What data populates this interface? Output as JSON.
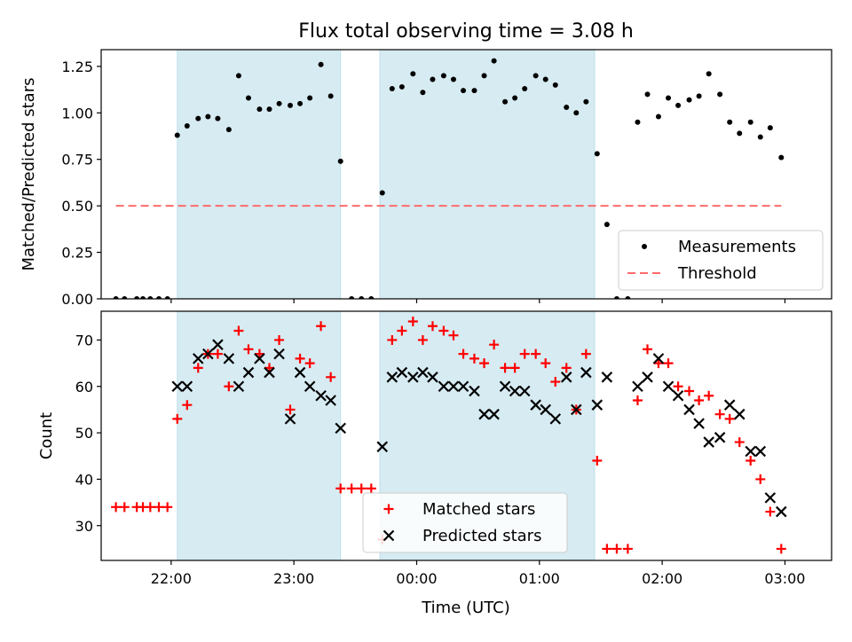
{
  "chart_data": {
    "type": "scatter",
    "title": "Flux total observing time = 3.08 h",
    "xlabel": "Time (UTC)",
    "x_unit": "hour (UTC), values after 24 are the next day",
    "xlim": [
      21.43,
      27.38
    ],
    "x_ticks": [
      22,
      23,
      24,
      25,
      26,
      27
    ],
    "x_tick_labels": [
      "22:00",
      "23:00",
      "00:00",
      "01:00",
      "02:00",
      "03:00"
    ],
    "shaded_intervals": [
      [
        22.05,
        23.38
      ],
      [
        23.7,
        25.45
      ]
    ],
    "shade_color": "#add8e6",
    "panels": [
      {
        "ylabel": "Matched/Predicted stars",
        "ylim": [
          0,
          1.34
        ],
        "y_ticks": [
          0,
          0.25,
          0.5,
          0.75,
          1.0,
          1.25
        ],
        "y_tick_labels": [
          "0.00",
          "0.25",
          "0.50",
          "0.75",
          "1.00",
          "1.25"
        ],
        "legend": {
          "position": "lower right",
          "entries": [
            "Measurements",
            "Threshold"
          ]
        },
        "series": [
          {
            "name": "Measurements",
            "style": "dot",
            "color": "#000000",
            "points": [
              [
                21.55,
                0
              ],
              [
                21.62,
                0
              ],
              [
                21.72,
                0
              ],
              [
                21.77,
                0
              ],
              [
                21.83,
                0
              ],
              [
                21.9,
                0
              ],
              [
                21.97,
                0
              ],
              [
                22.05,
                0.88
              ],
              [
                22.13,
                0.93
              ],
              [
                22.22,
                0.97
              ],
              [
                22.3,
                0.98
              ],
              [
                22.38,
                0.97
              ],
              [
                22.47,
                0.91
              ],
              [
                22.55,
                1.2
              ],
              [
                22.63,
                1.08
              ],
              [
                22.72,
                1.02
              ],
              [
                22.8,
                1.02
              ],
              [
                22.88,
                1.05
              ],
              [
                22.97,
                1.04
              ],
              [
                23.05,
                1.05
              ],
              [
                23.13,
                1.08
              ],
              [
                23.22,
                1.26
              ],
              [
                23.3,
                1.09
              ],
              [
                23.38,
                0.74
              ],
              [
                23.47,
                0
              ],
              [
                23.55,
                0
              ],
              [
                23.63,
                0
              ],
              [
                23.72,
                0.57
              ],
              [
                23.8,
                1.13
              ],
              [
                23.88,
                1.14
              ],
              [
                23.97,
                1.21
              ],
              [
                24.05,
                1.11
              ],
              [
                24.13,
                1.18
              ],
              [
                24.22,
                1.2
              ],
              [
                24.3,
                1.18
              ],
              [
                24.38,
                1.12
              ],
              [
                24.47,
                1.12
              ],
              [
                24.55,
                1.2
              ],
              [
                24.63,
                1.28
              ],
              [
                24.72,
                1.06
              ],
              [
                24.8,
                1.08
              ],
              [
                24.88,
                1.13
              ],
              [
                24.97,
                1.2
              ],
              [
                25.05,
                1.18
              ],
              [
                25.13,
                1.15
              ],
              [
                25.22,
                1.03
              ],
              [
                25.3,
                1.0
              ],
              [
                25.38,
                1.06
              ],
              [
                25.47,
                0.78
              ],
              [
                25.55,
                0.4
              ],
              [
                25.63,
                0
              ],
              [
                25.72,
                0
              ],
              [
                25.8,
                0.95
              ],
              [
                25.88,
                1.1
              ],
              [
                25.97,
                0.98
              ],
              [
                26.05,
                1.08
              ],
              [
                26.13,
                1.04
              ],
              [
                26.22,
                1.07
              ],
              [
                26.3,
                1.09
              ],
              [
                26.38,
                1.21
              ],
              [
                26.47,
                1.1
              ],
              [
                26.55,
                0.95
              ],
              [
                26.63,
                0.89
              ],
              [
                26.72,
                0.95
              ],
              [
                26.8,
                0.87
              ],
              [
                26.88,
                0.92
              ],
              [
                26.97,
                0.76
              ]
            ]
          },
          {
            "name": "Threshold",
            "style": "dashed-line",
            "color": "#ff6b6b",
            "points": [
              [
                21.55,
                0.5
              ],
              [
                26.97,
                0.5
              ]
            ]
          }
        ]
      },
      {
        "ylabel": "Count",
        "ylim": [
          22.5,
          76.2
        ],
        "y_ticks": [
          30,
          40,
          50,
          60,
          70
        ],
        "y_tick_labels": [
          "30",
          "40",
          "50",
          "60",
          "70"
        ],
        "legend": {
          "position": "lower center",
          "entries": [
            "Matched stars",
            "Predicted stars"
          ]
        },
        "series": [
          {
            "name": "Matched stars",
            "style": "plus",
            "color": "#ff0000",
            "points": [
              [
                21.55,
                34
              ],
              [
                21.62,
                34
              ],
              [
                21.72,
                34
              ],
              [
                21.77,
                34
              ],
              [
                21.83,
                34
              ],
              [
                21.9,
                34
              ],
              [
                21.97,
                34
              ],
              [
                22.05,
                53
              ],
              [
                22.13,
                56
              ],
              [
                22.22,
                64
              ],
              [
                22.3,
                67
              ],
              [
                22.38,
                67
              ],
              [
                22.47,
                60
              ],
              [
                22.55,
                72
              ],
              [
                22.63,
                68
              ],
              [
                22.72,
                67
              ],
              [
                22.8,
                64
              ],
              [
                22.88,
                70
              ],
              [
                22.97,
                55
              ],
              [
                23.05,
                66
              ],
              [
                23.13,
                65
              ],
              [
                23.22,
                73
              ],
              [
                23.3,
                62
              ],
              [
                23.38,
                38
              ],
              [
                23.47,
                38
              ],
              [
                23.55,
                38
              ],
              [
                23.63,
                38
              ],
              [
                23.72,
                27
              ],
              [
                23.8,
                70
              ],
              [
                23.88,
                72
              ],
              [
                23.97,
                74
              ],
              [
                24.05,
                70
              ],
              [
                24.13,
                73
              ],
              [
                24.22,
                72
              ],
              [
                24.3,
                71
              ],
              [
                24.38,
                67
              ],
              [
                24.47,
                66
              ],
              [
                24.55,
                65
              ],
              [
                24.63,
                69
              ],
              [
                24.72,
                64
              ],
              [
                24.8,
                64
              ],
              [
                24.88,
                67
              ],
              [
                24.97,
                67
              ],
              [
                25.05,
                65
              ],
              [
                25.13,
                61
              ],
              [
                25.22,
                64
              ],
              [
                25.3,
                55
              ],
              [
                25.38,
                67
              ],
              [
                25.47,
                44
              ],
              [
                25.55,
                25
              ],
              [
                25.63,
                25
              ],
              [
                25.72,
                25
              ],
              [
                25.8,
                57
              ],
              [
                25.88,
                68
              ],
              [
                25.97,
                65
              ],
              [
                26.05,
                65
              ],
              [
                26.13,
                60
              ],
              [
                26.22,
                59
              ],
              [
                26.3,
                57
              ],
              [
                26.38,
                58
              ],
              [
                26.47,
                54
              ],
              [
                26.55,
                53
              ],
              [
                26.63,
                48
              ],
              [
                26.72,
                44
              ],
              [
                26.8,
                40
              ],
              [
                26.88,
                33
              ],
              [
                26.97,
                25
              ]
            ]
          },
          {
            "name": "Predicted stars",
            "style": "x",
            "color": "#000000",
            "points": [
              [
                22.05,
                60
              ],
              [
                22.13,
                60
              ],
              [
                22.22,
                66
              ],
              [
                22.3,
                67
              ],
              [
                22.38,
                69
              ],
              [
                22.47,
                66
              ],
              [
                22.55,
                60
              ],
              [
                22.63,
                63
              ],
              [
                22.72,
                66
              ],
              [
                22.8,
                63
              ],
              [
                22.88,
                67
              ],
              [
                22.97,
                53
              ],
              [
                23.05,
                63
              ],
              [
                23.13,
                60
              ],
              [
                23.22,
                58
              ],
              [
                23.3,
                57
              ],
              [
                23.38,
                51
              ],
              [
                23.72,
                47
              ],
              [
                23.8,
                62
              ],
              [
                23.88,
                63
              ],
              [
                23.97,
                62
              ],
              [
                24.05,
                63
              ],
              [
                24.13,
                62
              ],
              [
                24.22,
                60
              ],
              [
                24.3,
                60
              ],
              [
                24.38,
                60
              ],
              [
                24.47,
                59
              ],
              [
                24.55,
                54
              ],
              [
                24.63,
                54
              ],
              [
                24.72,
                60
              ],
              [
                24.8,
                59
              ],
              [
                24.88,
                59
              ],
              [
                24.97,
                56
              ],
              [
                25.05,
                55
              ],
              [
                25.13,
                53
              ],
              [
                25.22,
                62
              ],
              [
                25.3,
                55
              ],
              [
                25.38,
                63
              ],
              [
                25.47,
                56
              ],
              [
                25.55,
                62
              ],
              [
                25.8,
                60
              ],
              [
                25.88,
                62
              ],
              [
                25.97,
                66
              ],
              [
                26.05,
                60
              ],
              [
                26.13,
                58
              ],
              [
                26.22,
                55
              ],
              [
                26.3,
                52
              ],
              [
                26.38,
                48
              ],
              [
                26.47,
                49
              ],
              [
                26.55,
                56
              ],
              [
                26.63,
                54
              ],
              [
                26.72,
                46
              ],
              [
                26.8,
                46
              ],
              [
                26.88,
                36
              ],
              [
                26.97,
                33
              ]
            ]
          }
        ]
      }
    ]
  }
}
